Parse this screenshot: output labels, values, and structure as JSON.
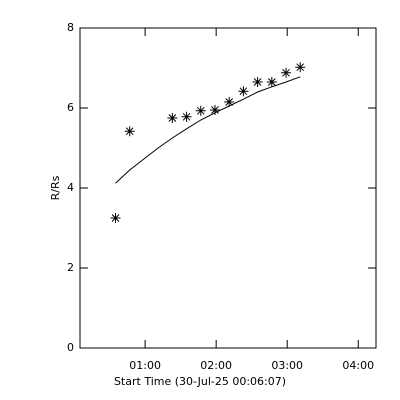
{
  "chart_data": {
    "type": "scatter",
    "xlabel": "Start Time (30-Jul-25 00:06:07)",
    "ylabel": "R/Rs",
    "xlim": [
      5,
      255
    ],
    "xticks": [
      {
        "value": 60,
        "label": "01:00"
      },
      {
        "value": 120,
        "label": "02:00"
      },
      {
        "value": 180,
        "label": "03:00"
      },
      {
        "value": 240,
        "label": "04:00"
      }
    ],
    "ylim": [
      0,
      8
    ],
    "yticks": [
      0,
      2,
      4,
      6,
      8
    ],
    "series": [
      {
        "marker": "asterisk",
        "color": "#000000",
        "x": [
          35,
          47,
          83,
          95,
          107,
          119,
          131,
          143,
          155,
          167,
          179,
          191
        ],
        "values": [
          3.25,
          5.42,
          5.75,
          5.78,
          5.93,
          5.95,
          6.15,
          6.42,
          6.65,
          6.65,
          6.88,
          7.02
        ]
      },
      {
        "marker": "line",
        "color": "#000000",
        "x": [
          35,
          47,
          60,
          71,
          83,
          95,
          107,
          119,
          131,
          143,
          155,
          167,
          179,
          191
        ],
        "values": [
          4.12,
          4.45,
          4.75,
          5.0,
          5.25,
          5.48,
          5.7,
          5.88,
          6.05,
          6.22,
          6.4,
          6.53,
          6.65,
          6.78
        ]
      }
    ]
  }
}
